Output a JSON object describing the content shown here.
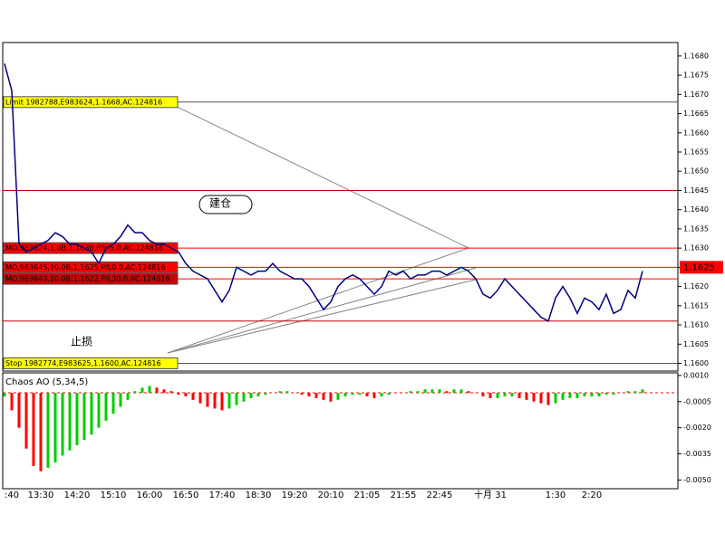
{
  "chart_data": [
    {
      "type": "line",
      "color": "#000080",
      "categories": [
        null,
        ":40",
        null,
        null,
        null,
        "13:30",
        null,
        null,
        null,
        null,
        "14:20",
        null,
        null,
        null,
        null,
        "15:10",
        null,
        null,
        null,
        null,
        "16:00",
        null,
        null,
        null,
        null,
        "16:50",
        null,
        null,
        null,
        null,
        "17:40",
        null,
        null,
        null,
        null,
        "18:30",
        null,
        null,
        null,
        null,
        "19:20",
        null,
        null,
        null,
        null,
        "20:10",
        null,
        null,
        null,
        null,
        "21:05",
        null,
        null,
        null,
        null,
        "21:55",
        null,
        null,
        null,
        null,
        "22:45",
        null,
        null,
        null,
        null,
        null,
        null,
        "十月 31",
        null,
        null,
        null,
        null,
        null,
        null,
        null,
        null,
        "1:30",
        null,
        null,
        null,
        null,
        "2:20",
        null,
        null,
        null,
        null,
        null,
        null,
        null
      ],
      "values": [
        1.1678,
        1.1671,
        1.1631,
        1.1629,
        1.163,
        1.1631,
        1.1632,
        1.1634,
        1.1633,
        1.1631,
        1.1631,
        1.163,
        1.1629,
        1.1626,
        1.163,
        1.1631,
        1.1633,
        1.1636,
        1.1634,
        1.1634,
        1.1632,
        1.1631,
        1.1631,
        1.163,
        1.1629,
        1.1626,
        1.1624,
        1.1623,
        1.1622,
        1.1619,
        1.1616,
        1.1619,
        1.1625,
        1.1624,
        1.1623,
        1.1624,
        1.1624,
        1.1626,
        1.1624,
        1.1623,
        1.1622,
        1.1622,
        1.162,
        1.1617,
        1.1614,
        1.1616,
        1.162,
        1.1622,
        1.1623,
        1.1622,
        1.162,
        1.1618,
        1.162,
        1.1624,
        1.1623,
        1.1624,
        1.1622,
        1.1623,
        1.1623,
        1.1624,
        1.1624,
        1.1623,
        1.1624,
        1.1625,
        1.1624,
        1.1622,
        1.1618,
        1.1617,
        1.1619,
        1.1622,
        1.162,
        1.1618,
        1.1616,
        1.1614,
        1.1612,
        1.1611,
        1.1617,
        1.162,
        1.1617,
        1.1613,
        1.1617,
        1.1616,
        1.1614,
        1.1618,
        1.1613,
        1.1614,
        1.1619,
        1.1617,
        1.1624
      ],
      "ylim": [
        1.1598,
        1.16835
      ],
      "yticks": [
        {
          "value": 1.168,
          "label": "1.1680"
        },
        1.1675,
        {
          "value": 1.167,
          "label": "1.1670"
        },
        1.1665,
        {
          "value": 1.166,
          "label": "1.1660"
        },
        1.1655,
        {
          "value": 1.165,
          "label": "1.1650"
        },
        1.1645,
        {
          "value": 1.164,
          "label": "1.1640"
        },
        1.1635,
        {
          "value": 1.163,
          "label": "1.1630"
        },
        1.1625,
        {
          "value": 1.162,
          "label": "1.1620"
        },
        1.1615,
        {
          "value": 1.161,
          "label": "1.1610"
        },
        1.1605,
        {
          "value": 1.16,
          "label": "1.1600"
        }
      ],
      "orders": [
        {
          "label": "Limit 1982788,E983624,1.1668,AC.124816",
          "value": 1.1668,
          "color": "#ffff00"
        },
        {
          "label": "MO,983624,1.0B,1.1630,P/L-5.0,AC.124816",
          "value": 1.163,
          "color": "#ff0000"
        },
        {
          "label": "MO,983645,10.0B,1.1625,P/L0.0,AC.124816",
          "value": 1.1625,
          "color": "#ff0000"
        },
        {
          "label": "MO,983643,10.0B,1.1622,P/L30.0,AC.124816",
          "value": 1.1622,
          "color": "#cc0000"
        },
        {
          "label": "Stop 1982774,E983625,1.1600,AC.124816",
          "value": 1.16,
          "color": "#ffff00"
        }
      ],
      "levels": [
        1.1645,
        1.1611
      ],
      "last_price": 1.1625,
      "notes": [
        "建仓",
        "止损"
      ]
    },
    {
      "type": "histogram",
      "title": "Chaos AO (5,34,5)",
      "up_color": "#00cc00",
      "down_color": "#ff0000",
      "values": [
        -0.0002,
        -0.001,
        -0.002,
        -0.0032,
        -0.0042,
        -0.0045,
        -0.0043,
        -0.004,
        -0.0036,
        -0.0033,
        -0.003,
        -0.0027,
        -0.0024,
        -0.002,
        -0.0016,
        -0.0012,
        -0.0008,
        -0.0004,
        0.0001,
        0.0003,
        0.0004,
        0.0003,
        0.0002,
        0.0001,
        -0.0001,
        -0.0002,
        -0.0004,
        -0.0006,
        -0.0008,
        -0.0009,
        -0.001,
        -0.0009,
        -0.0007,
        -0.0005,
        -0.0003,
        -0.0002,
        -0.0001,
        0.0,
        0.0001,
        0.0001,
        0.0,
        -0.0001,
        -0.0002,
        -0.0003,
        -0.0004,
        -0.0005,
        -0.0004,
        -0.0002,
        -0.0001,
        -0.0001,
        -0.0002,
        -0.0003,
        -0.0002,
        -0.0001,
        0.0,
        0.0,
        0.0001,
        0.0001,
        0.0002,
        0.0002,
        0.0002,
        0.0001,
        0.0002,
        0.0002,
        0.0001,
        0.0,
        -0.0002,
        -0.0003,
        -0.0003,
        -0.0002,
        -0.0002,
        -0.0003,
        -0.0004,
        -0.0005,
        -0.0006,
        -0.0007,
        -0.0006,
        -0.0004,
        -0.0003,
        -0.0003,
        -0.0002,
        -0.0002,
        -0.0002,
        -0.0001,
        -0.0001,
        0.0,
        0.0001,
        0.0001,
        0.0002
      ],
      "ylim": [
        -0.0055,
        0.00115
      ],
      "yticks": [
        {
          "value": 0.001,
          "label": "0.0010"
        },
        -0.0005,
        {
          "value": -0.002,
          "label": "-0.0020"
        },
        -0.0035,
        {
          "value": -0.005,
          "label": "-0.0050"
        }
      ]
    }
  ]
}
